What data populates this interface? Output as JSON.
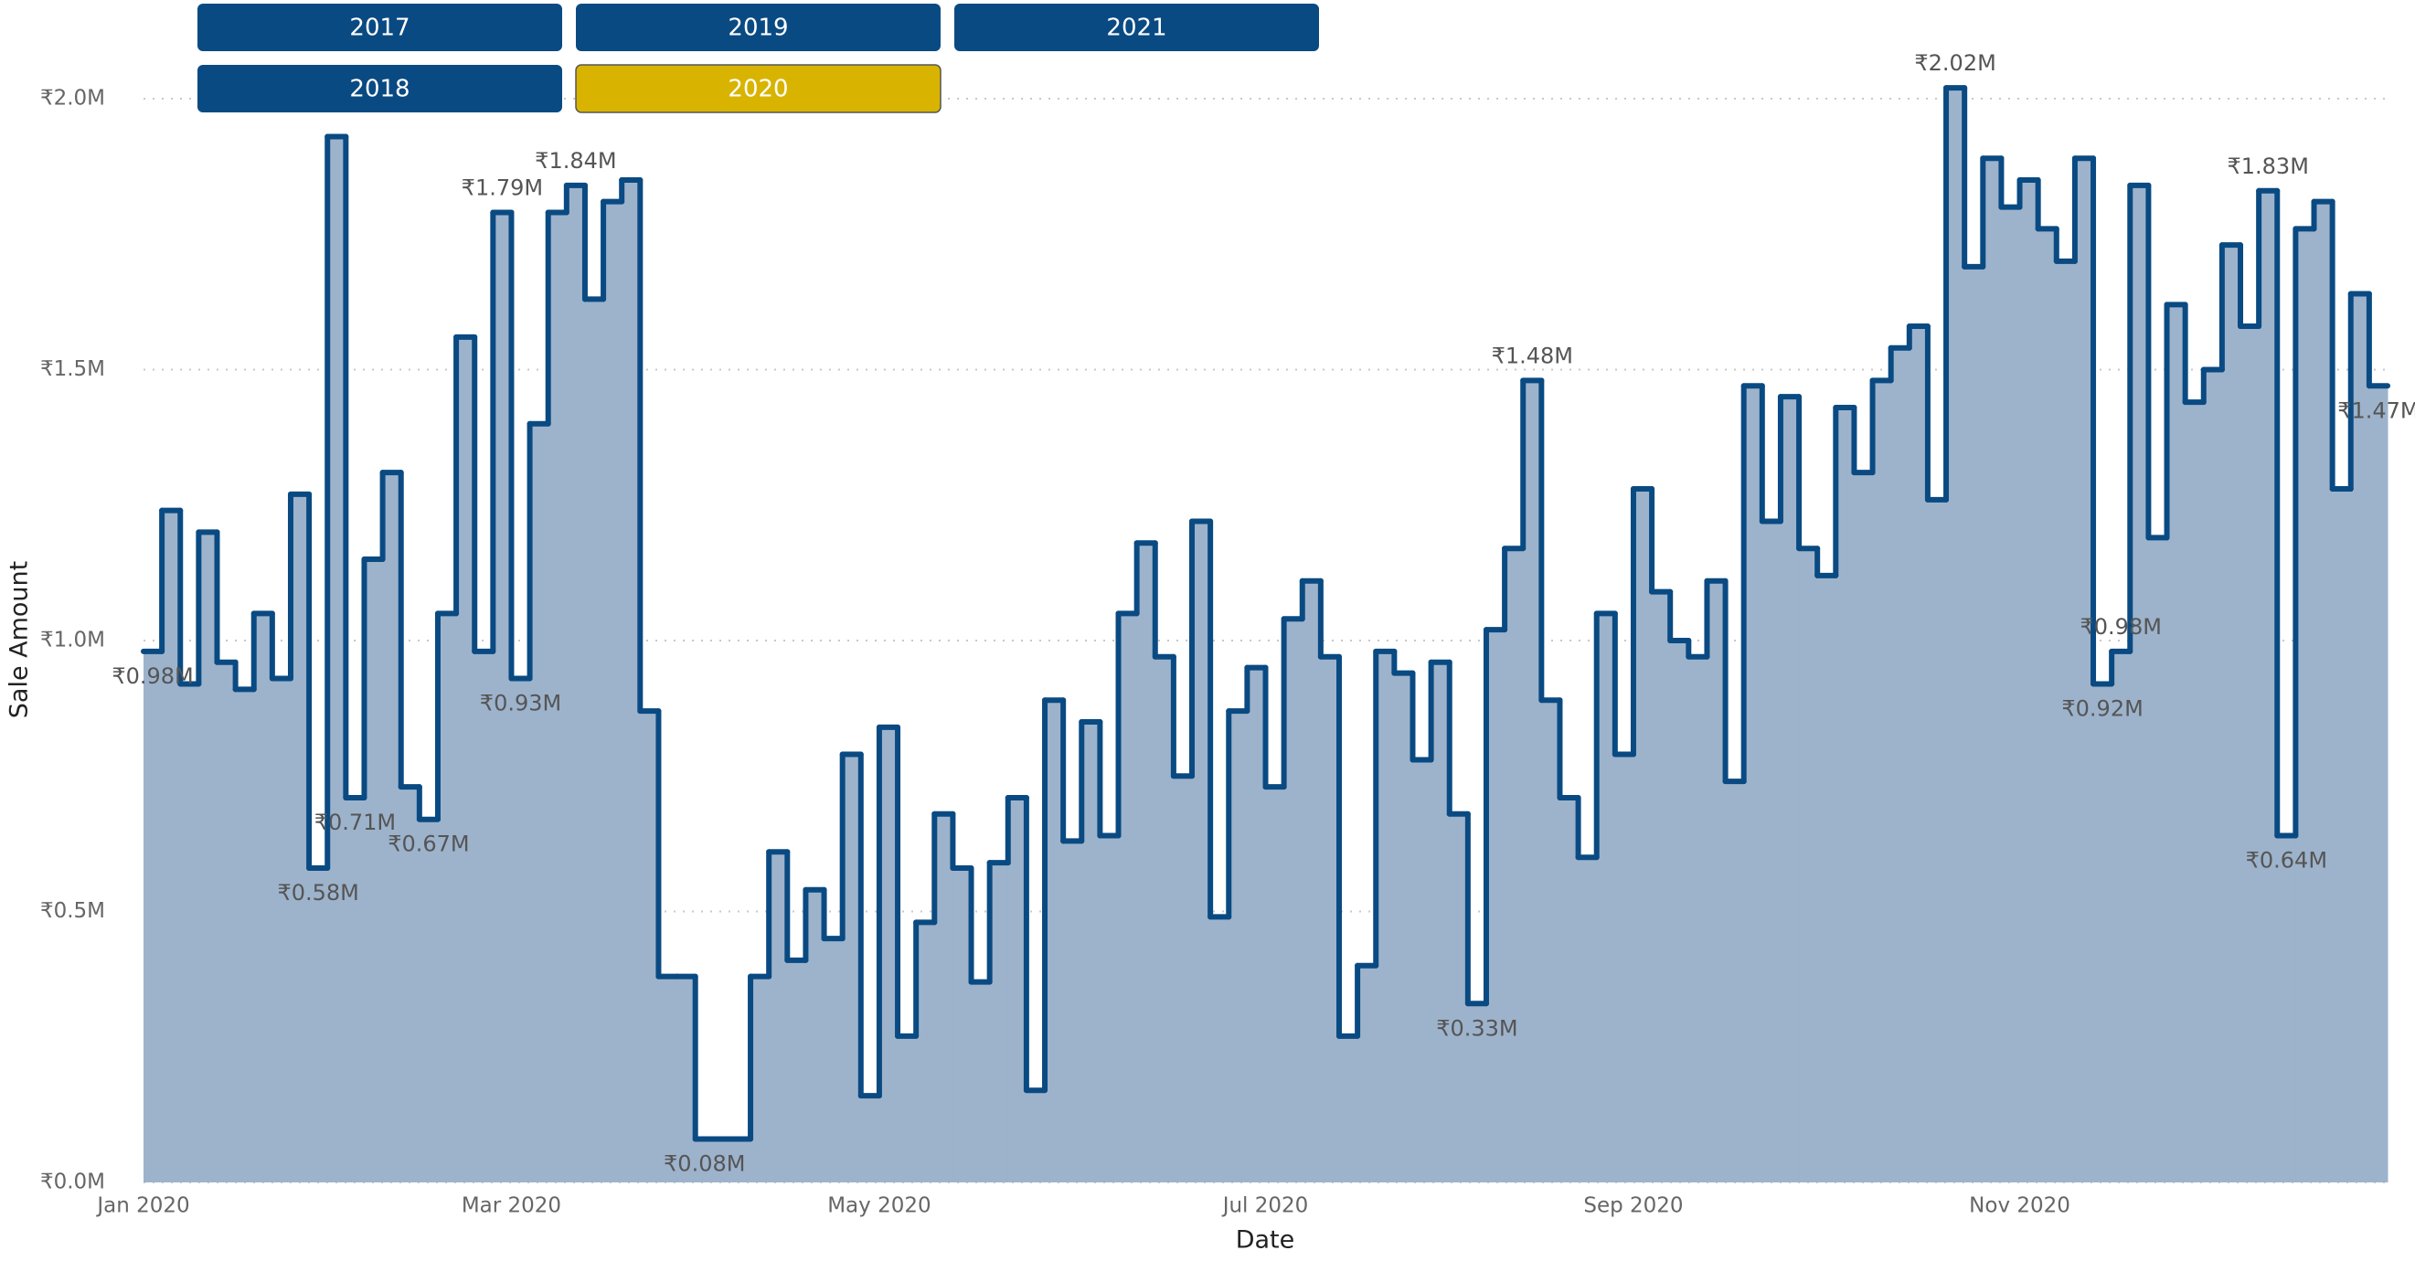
{
  "slicer": {
    "items": [
      {
        "label": "2017",
        "selected": false
      },
      {
        "label": "2018",
        "selected": false
      },
      {
        "label": "2019",
        "selected": false
      },
      {
        "label": "2020",
        "selected": true
      },
      {
        "label": "2021",
        "selected": false
      }
    ],
    "color": "#0a4a82",
    "selected_color": "#d8b400"
  },
  "chart_data": {
    "type": "step-area",
    "x_label": "Date",
    "y_label": "Sale Amount",
    "line_color": "#0a4a82",
    "fill_color": "#9db3cc",
    "grid": true,
    "ylim": [
      0,
      2000000
    ],
    "yticks": [
      {
        "value": 0,
        "label": "₹0.0M"
      },
      {
        "value": 500000,
        "label": "₹0.5M"
      },
      {
        "value": 1000000,
        "label": "₹1.0M"
      },
      {
        "value": 1500000,
        "label": "₹1.5M"
      },
      {
        "value": 2000000,
        "label": "₹2.0M"
      }
    ],
    "categories": [
      "Jan 2020",
      null,
      null,
      null,
      null,
      null,
      null,
      null,
      null,
      null,
      null,
      null,
      null,
      null,
      null,
      null,
      null,
      null,
      null,
      null,
      "Mar 2020",
      null,
      null,
      null,
      null,
      null,
      null,
      null,
      null,
      null,
      null,
      null,
      null,
      null,
      null,
      null,
      null,
      null,
      null,
      null,
      "May 2020",
      null,
      null,
      null,
      null,
      null,
      null,
      null,
      null,
      null,
      null,
      null,
      null,
      null,
      null,
      null,
      null,
      null,
      null,
      null,
      null,
      "Jul 2020",
      null,
      null,
      null,
      null,
      null,
      null,
      null,
      null,
      null,
      null,
      null,
      null,
      null,
      null,
      null,
      null,
      null,
      null,
      null,
      "Sep 2020",
      null,
      null,
      null,
      null,
      null,
      null,
      null,
      null,
      null,
      null,
      null,
      null,
      null,
      null,
      null,
      null,
      null,
      null,
      null,
      null,
      "Nov 2020",
      null,
      null,
      null,
      null,
      null,
      null,
      null,
      null,
      null,
      null,
      null,
      null,
      null,
      null,
      null,
      null,
      null,
      null,
      null
    ],
    "values": [
      980000,
      1240000,
      920000,
      1200000,
      960000,
      910000,
      1050000,
      930000,
      1270000,
      580000,
      1930000,
      710000,
      1150000,
      1310000,
      730000,
      670000,
      1050000,
      1560000,
      980000,
      1790000,
      930000,
      1400000,
      1790000,
      1840000,
      1630000,
      1810000,
      1850000,
      870000,
      380000,
      380000,
      80000,
      80000,
      80000,
      380000,
      610000,
      410000,
      540000,
      450000,
      790000,
      160000,
      840000,
      270000,
      480000,
      680000,
      580000,
      370000,
      590000,
      710000,
      170000,
      890000,
      630000,
      850000,
      640000,
      1050000,
      1180000,
      970000,
      750000,
      1220000,
      490000,
      870000,
      950000,
      730000,
      1040000,
      1110000,
      970000,
      270000,
      400000,
      980000,
      940000,
      780000,
      960000,
      680000,
      330000,
      1020000,
      1170000,
      1480000,
      890000,
      710000,
      600000,
      1050000,
      790000,
      1280000,
      1090000,
      1000000,
      970000,
      1110000,
      740000,
      1470000,
      1220000,
      1450000,
      1170000,
      1120000,
      1430000,
      1310000,
      1480000,
      1540000,
      1580000,
      1260000,
      2020000,
      1690000,
      1890000,
      1800000,
      1850000,
      1760000,
      1700000,
      1890000,
      920000,
      980000,
      1840000,
      1190000,
      1620000,
      1440000,
      1500000,
      1730000,
      1580000,
      1830000,
      640000,
      1760000,
      1810000,
      1280000,
      1640000,
      1470000
    ],
    "value_labels": [
      "₹0.98M",
      null,
      null,
      null,
      null,
      null,
      null,
      null,
      null,
      "₹0.58M",
      null,
      "₹0.71M",
      null,
      null,
      null,
      "₹0.67M",
      null,
      null,
      null,
      "₹1.79M",
      "₹0.93M",
      null,
      null,
      "₹1.84M",
      null,
      null,
      null,
      null,
      null,
      null,
      "₹0.08M",
      null,
      null,
      null,
      null,
      null,
      null,
      null,
      null,
      null,
      null,
      null,
      null,
      null,
      null,
      null,
      null,
      null,
      null,
      null,
      null,
      null,
      null,
      null,
      null,
      null,
      null,
      null,
      null,
      null,
      null,
      null,
      null,
      null,
      null,
      null,
      null,
      null,
      null,
      null,
      null,
      null,
      "₹0.33M",
      null,
      null,
      "₹1.48M",
      null,
      null,
      null,
      null,
      null,
      null,
      null,
      null,
      null,
      null,
      null,
      null,
      null,
      null,
      null,
      null,
      null,
      null,
      null,
      null,
      null,
      null,
      "₹2.02M",
      null,
      null,
      null,
      null,
      null,
      null,
      null,
      "₹0.92M",
      "₹0.98M",
      null,
      null,
      null,
      null,
      null,
      null,
      null,
      "₹1.83M",
      "₹0.64M",
      null,
      null,
      null,
      null,
      "₹1.47M"
    ]
  }
}
